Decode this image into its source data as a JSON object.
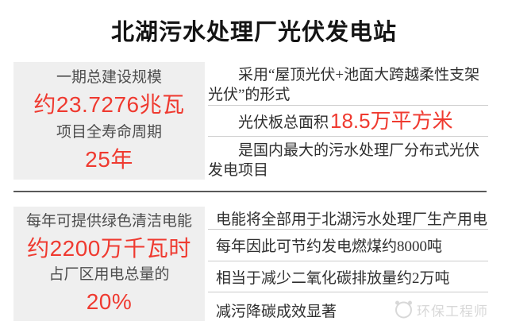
{
  "title": "北湖污水处理厂光伏发电站",
  "top": {
    "stat_box": {
      "label1": "一期总建设规模",
      "value1": "约23.7276兆瓦",
      "label2": "项目全寿命周期",
      "value2": "25年"
    },
    "facts": [
      {
        "text": "采用“屋顶光伏+池面大跨越柔性支架光伏”的形式"
      },
      {
        "prefix": "光伏板总面积",
        "highlight": "18.5万平方米"
      },
      {
        "text": "是国内最大的污水处理厂分布式光伏发电项目"
      }
    ]
  },
  "bottom": {
    "stat_box": {
      "label1": "每年可提供绿色清洁电能",
      "value1": "约2200万千瓦时",
      "label2": "占厂区用电总量的",
      "value2": "20%"
    },
    "facts": [
      {
        "text": "电能将全部用于北湖污水处理厂生产用电"
      },
      {
        "text": "每年因此可节约发电燃煤约8000吨"
      },
      {
        "text": "相当于减少二氧化碳排放量约2万吨"
      },
      {
        "text": "减污降碳成效显著"
      }
    ]
  },
  "watermark": {
    "icon": "panda-logo-icon",
    "label": "环保工程师"
  },
  "colors": {
    "accent_red": "#ef3a30",
    "label_gray": "#4d4d4d",
    "body_text": "#2f2f2f",
    "box_bg": "#efefef",
    "divider_light": "#cccccc",
    "divider_dark": "#5a5a5a",
    "watermark_gray": "#d8d8d8"
  }
}
